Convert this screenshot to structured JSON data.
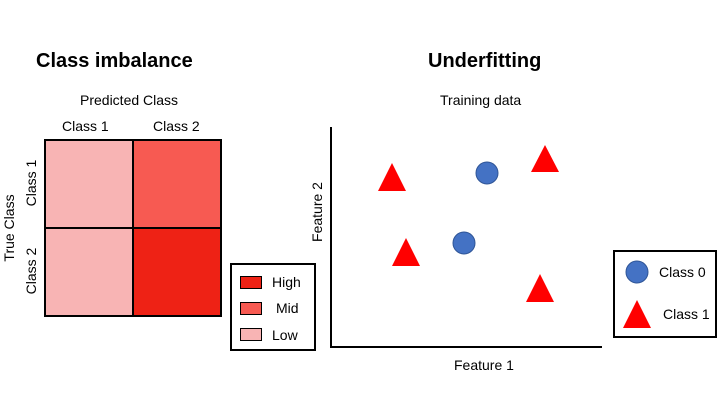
{
  "class_imbalance": {
    "title": "Class imbalance",
    "predicted_label": "Predicted Class",
    "true_label": "True Class",
    "col_labels": [
      "Class 1",
      "Class 2"
    ],
    "row_labels": [
      "Class 1",
      "Class 2"
    ],
    "cells": [
      [
        "#f8b4b4",
        "#f75a52"
      ],
      [
        "#f8b4b4",
        "#ee2215"
      ]
    ],
    "legend": [
      {
        "label": "High",
        "color": "#ee2215"
      },
      {
        "label": "Mid",
        "color": "#f75a52"
      },
      {
        "label": "Low",
        "color": "#f8b4b4"
      }
    ]
  },
  "underfitting": {
    "title": "Underfitting",
    "subtitle": "Training data",
    "xlabel": "Feature 1",
    "ylabel": "Feature 2",
    "legend": [
      {
        "label": "Class 0",
        "shape": "circle",
        "color": "#4472c4"
      },
      {
        "label": "Class 1",
        "shape": "triangle",
        "color": "#ff0000"
      }
    ]
  }
}
